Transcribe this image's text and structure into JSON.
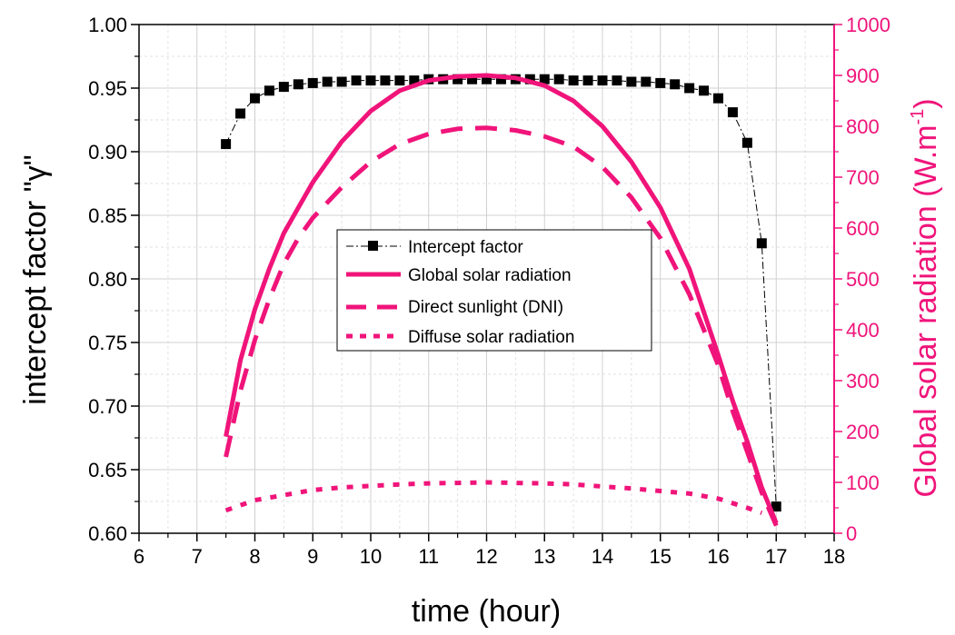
{
  "chart_data": {
    "type": "line",
    "xlabel": "time (hour)",
    "ylabel_left": "intercept factor \"γ\"",
    "ylabel_right_main": "Global solar radiation (W.m",
    "ylabel_right_sup": "-1",
    "ylabel_right_close": ")",
    "xlim": [
      6,
      18
    ],
    "ylim_left": [
      0.6,
      1.0
    ],
    "ylim_right": [
      0,
      1000
    ],
    "x_ticks": [
      "6",
      "7",
      "8",
      "9",
      "10",
      "11",
      "12",
      "13",
      "14",
      "15",
      "16",
      "17",
      "18"
    ],
    "y_left_ticks": [
      "0.60",
      "0.65",
      "0.70",
      "0.75",
      "0.80",
      "0.85",
      "0.90",
      "0.95",
      "1.00"
    ],
    "y_right_ticks": [
      "0",
      "100",
      "200",
      "300",
      "400",
      "500",
      "600",
      "700",
      "800",
      "900",
      "1000"
    ],
    "grid": true,
    "legend_position": "center",
    "colors": {
      "intercept": "#000000",
      "radiation": "#f0147a",
      "right_axis": "#f0147a"
    },
    "series": [
      {
        "name": "Intercept factor",
        "axis": "left",
        "style": "dash-dot-markers",
        "x": [
          7.5,
          7.75,
          8,
          8.25,
          8.5,
          8.75,
          9,
          9.25,
          9.5,
          9.75,
          10,
          10.25,
          10.5,
          10.75,
          11,
          11.25,
          11.5,
          11.75,
          12,
          12.25,
          12.5,
          12.75,
          13,
          13.25,
          13.5,
          13.75,
          14,
          14.25,
          14.5,
          14.75,
          15,
          15.25,
          15.5,
          15.75,
          16,
          16.25,
          16.5,
          16.75,
          17
        ],
        "y": [
          0.906,
          0.93,
          0.942,
          0.948,
          0.951,
          0.953,
          0.954,
          0.955,
          0.955,
          0.956,
          0.956,
          0.956,
          0.956,
          0.956,
          0.957,
          0.957,
          0.957,
          0.957,
          0.957,
          0.957,
          0.957,
          0.957,
          0.957,
          0.957,
          0.956,
          0.956,
          0.956,
          0.956,
          0.955,
          0.955,
          0.954,
          0.953,
          0.95,
          0.948,
          0.942,
          0.931,
          0.907,
          0.828,
          0.621
        ]
      },
      {
        "name": "Global solar radiation",
        "axis": "right",
        "style": "solid",
        "x": [
          7.5,
          7.75,
          8,
          8.25,
          8.5,
          8.75,
          9,
          9.5,
          10,
          10.5,
          11,
          11.5,
          12,
          12.5,
          13,
          13.5,
          14,
          14.5,
          15,
          15.5,
          16,
          16.25,
          16.5,
          16.75,
          17
        ],
        "y": [
          190,
          340,
          440,
          520,
          590,
          640,
          690,
          770,
          830,
          870,
          890,
          898,
          900,
          895,
          880,
          850,
          800,
          730,
          640,
          520,
          350,
          260,
          180,
          90,
          20
        ]
      },
      {
        "name": "Direct sunlight (DNI)",
        "axis": "right",
        "style": "dashed",
        "x": [
          7.5,
          7.75,
          8,
          8.25,
          8.5,
          8.75,
          9,
          9.5,
          10,
          10.5,
          11,
          11.5,
          12,
          12.5,
          13,
          13.5,
          14,
          14.5,
          15,
          15.5,
          16,
          16.25,
          16.5,
          16.75,
          17
        ],
        "y": [
          150,
          280,
          380,
          460,
          530,
          580,
          620,
          680,
          730,
          765,
          785,
          795,
          797,
          792,
          780,
          760,
          720,
          660,
          580,
          470,
          330,
          240,
          160,
          80,
          15
        ]
      },
      {
        "name": "Diffuse solar radiation",
        "axis": "right",
        "style": "dotted",
        "x": [
          7.5,
          8,
          8.5,
          9,
          9.5,
          10,
          10.5,
          11,
          11.5,
          12,
          12.5,
          13,
          13.5,
          14,
          14.5,
          15,
          15.5,
          16,
          16.5,
          16.75
        ],
        "y": [
          45,
          65,
          75,
          85,
          90,
          93,
          96,
          98,
          99,
          100,
          99,
          98,
          96,
          92,
          88,
          83,
          78,
          68,
          50,
          40
        ]
      }
    ]
  }
}
